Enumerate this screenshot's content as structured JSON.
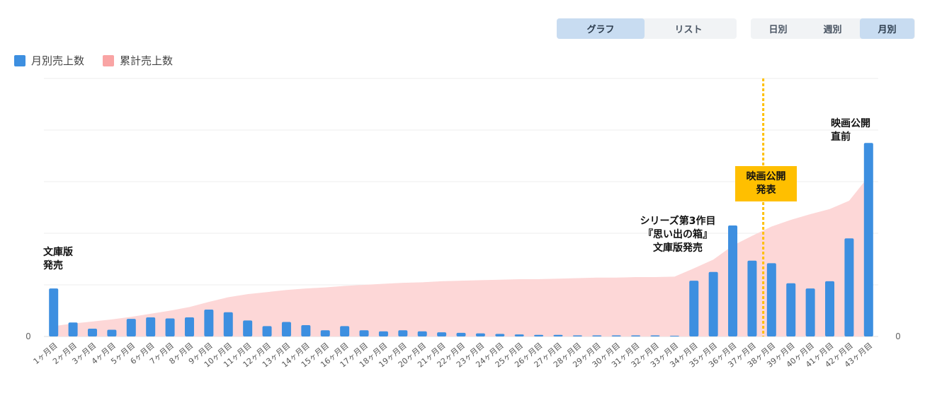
{
  "view_toggle": {
    "options": [
      "グラフ",
      "リスト"
    ],
    "active": 0
  },
  "period_toggle": {
    "options": [
      "日別",
      "週別",
      "月別"
    ],
    "active": 2
  },
  "legend": [
    {
      "label": "月別売上数",
      "color": "#3d8fe0"
    },
    {
      "label": "累計売上数",
      "color": "#f9a4a4"
    }
  ],
  "chart_data": {
    "type": "bar",
    "categories": [
      "1ヶ月目",
      "2ヶ月目",
      "3ヶ月目",
      "4ヶ月目",
      "5ヶ月目",
      "6ヶ月目",
      "7ヶ月目",
      "8ヶ月目",
      "9ヶ月目",
      "10ヶ月目",
      "11ヶ月目",
      "12ヶ月目",
      "13ヶ月目",
      "14ヶ月目",
      "15ヶ月目",
      "16ヶ月目",
      "17ヶ月目",
      "18ヶ月目",
      "19ヶ月目",
      "20ヶ月目",
      "21ヶ月目",
      "22ヶ月目",
      "23ヶ月目",
      "24ヶ月目",
      "25ヶ月目",
      "26ヶ月目",
      "27ヶ月目",
      "28ヶ月目",
      "29ヶ月目",
      "30ヶ月目",
      "31ヶ月目",
      "32ヶ月目",
      "33ヶ月目",
      "34ヶ月目",
      "35ヶ月目",
      "36ヶ月目",
      "37ヶ月目",
      "38ヶ月目",
      "39ヶ月目",
      "40ヶ月目",
      "41ヶ月目",
      "42ヶ月目",
      "43ヶ月目"
    ],
    "series": [
      {
        "name": "月別売上数",
        "kind": "bar",
        "axis": "left",
        "color": "#3d8fe0",
        "values": [
          0.93,
          0.27,
          0.15,
          0.13,
          0.34,
          0.37,
          0.35,
          0.37,
          0.52,
          0.47,
          0.31,
          0.2,
          0.28,
          0.22,
          0.12,
          0.2,
          0.12,
          0.1,
          0.12,
          0.1,
          0.08,
          0.07,
          0.06,
          0.05,
          0.04,
          0.03,
          0.03,
          0.02,
          0.02,
          0.02,
          0.02,
          0.02,
          0.01,
          1.08,
          1.25,
          2.15,
          1.47,
          1.42,
          1.03,
          0.93,
          1.07,
          1.9,
          3.75
        ]
      },
      {
        "name": "累計売上数",
        "kind": "area",
        "axis": "right",
        "color": "#fdd7d7",
        "values": [
          0.2,
          0.25,
          0.29,
          0.33,
          0.38,
          0.44,
          0.5,
          0.57,
          0.67,
          0.76,
          0.82,
          0.86,
          0.9,
          0.93,
          0.95,
          0.98,
          1.0,
          1.02,
          1.04,
          1.05,
          1.07,
          1.08,
          1.09,
          1.1,
          1.11,
          1.11,
          1.12,
          1.13,
          1.14,
          1.14,
          1.15,
          1.15,
          1.16,
          1.32,
          1.49,
          1.76,
          1.95,
          2.13,
          2.26,
          2.37,
          2.47,
          2.63,
          3.1
        ]
      }
    ],
    "ylim": [
      0,
      5
    ],
    "y2lim": [
      0,
      5
    ],
    "y_ticks": [
      "0"
    ],
    "y2_ticks": [
      "0"
    ],
    "grid": true,
    "annotations": [
      {
        "label": "文庫版\n発売",
        "category": "1ヶ月目"
      },
      {
        "label": "シリーズ第3作目\n『思い出の箱』\n文庫版発売",
        "category": "34ヶ月目"
      },
      {
        "label": "映画公開\n発表",
        "category": "38ヶ月目",
        "marker": "dashed-line",
        "color": "#ffbf00"
      },
      {
        "label": "映画公開\n直前",
        "category": "43ヶ月目"
      }
    ]
  }
}
